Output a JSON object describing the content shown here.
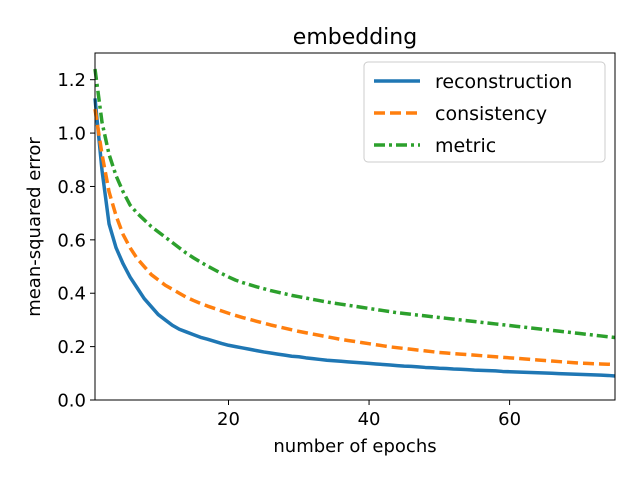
{
  "chart_data": {
    "type": "line",
    "title": "embedding",
    "xlabel": "number of epochs",
    "ylabel": "mean-squared error",
    "xlim": [
      1,
      75
    ],
    "ylim": [
      0.0,
      1.3
    ],
    "xticks": [
      20,
      40,
      60
    ],
    "xtick_labels": [
      "20",
      "40",
      "60"
    ],
    "yticks": [
      0.0,
      0.2,
      0.4,
      0.6,
      0.8,
      1.0,
      1.2
    ],
    "ytick_labels": [
      "0.0",
      "0.2",
      "0.4",
      "0.6",
      "0.8",
      "1.0",
      "1.2"
    ],
    "legend_position": "upper-right",
    "x": [
      1,
      2,
      3,
      4,
      5,
      6,
      7,
      8,
      9,
      10,
      11,
      12,
      13,
      14,
      15,
      16,
      17,
      18,
      19,
      20,
      21,
      22,
      23,
      24,
      25,
      26,
      27,
      28,
      29,
      30,
      31,
      32,
      33,
      34,
      35,
      36,
      37,
      38,
      39,
      40,
      41,
      42,
      43,
      44,
      45,
      46,
      47,
      48,
      49,
      50,
      51,
      52,
      53,
      54,
      55,
      56,
      57,
      58,
      59,
      60,
      61,
      62,
      63,
      64,
      65,
      66,
      67,
      68,
      69,
      70,
      71,
      72,
      73,
      74,
      75
    ],
    "series": [
      {
        "name": "reconstruction",
        "color": "#1f77b4",
        "style": "solid",
        "values": [
          1.13,
          0.86,
          0.66,
          0.57,
          0.51,
          0.46,
          0.42,
          0.38,
          0.35,
          0.32,
          0.3,
          0.28,
          0.265,
          0.255,
          0.245,
          0.235,
          0.228,
          0.22,
          0.212,
          0.205,
          0.2,
          0.195,
          0.19,
          0.185,
          0.18,
          0.176,
          0.172,
          0.168,
          0.164,
          0.162,
          0.158,
          0.155,
          0.152,
          0.149,
          0.147,
          0.145,
          0.143,
          0.141,
          0.139,
          0.137,
          0.135,
          0.133,
          0.131,
          0.129,
          0.127,
          0.126,
          0.124,
          0.122,
          0.121,
          0.119,
          0.118,
          0.116,
          0.115,
          0.114,
          0.112,
          0.111,
          0.11,
          0.109,
          0.107,
          0.106,
          0.105,
          0.104,
          0.103,
          0.102,
          0.101,
          0.1,
          0.099,
          0.098,
          0.097,
          0.096,
          0.095,
          0.094,
          0.093,
          0.092,
          0.09
        ]
      },
      {
        "name": "consistency",
        "color": "#ff7f0e",
        "style": "dashed",
        "values": [
          1.09,
          0.92,
          0.78,
          0.69,
          0.62,
          0.57,
          0.53,
          0.5,
          0.47,
          0.45,
          0.43,
          0.415,
          0.4,
          0.385,
          0.373,
          0.362,
          0.352,
          0.343,
          0.334,
          0.325,
          0.317,
          0.309,
          0.302,
          0.295,
          0.288,
          0.281,
          0.275,
          0.269,
          0.263,
          0.257,
          0.252,
          0.247,
          0.242,
          0.237,
          0.232,
          0.227,
          0.223,
          0.219,
          0.215,
          0.211,
          0.207,
          0.203,
          0.199,
          0.196,
          0.193,
          0.19,
          0.187,
          0.184,
          0.181,
          0.178,
          0.176,
          0.174,
          0.172,
          0.17,
          0.168,
          0.166,
          0.164,
          0.162,
          0.16,
          0.158,
          0.156,
          0.154,
          0.152,
          0.15,
          0.148,
          0.146,
          0.144,
          0.142,
          0.14,
          0.138,
          0.137,
          0.136,
          0.135,
          0.134,
          0.133
        ]
      },
      {
        "name": "metric",
        "color": "#2ca02c",
        "style": "dashdot",
        "values": [
          1.24,
          1.04,
          0.92,
          0.84,
          0.78,
          0.73,
          0.7,
          0.675,
          0.65,
          0.63,
          0.61,
          0.59,
          0.57,
          0.55,
          0.533,
          0.517,
          0.502,
          0.488,
          0.474,
          0.461,
          0.449,
          0.44,
          0.432,
          0.424,
          0.417,
          0.41,
          0.404,
          0.398,
          0.392,
          0.387,
          0.382,
          0.377,
          0.372,
          0.367,
          0.363,
          0.359,
          0.355,
          0.351,
          0.347,
          0.343,
          0.339,
          0.335,
          0.331,
          0.327,
          0.324,
          0.321,
          0.318,
          0.315,
          0.312,
          0.309,
          0.306,
          0.303,
          0.3,
          0.297,
          0.294,
          0.291,
          0.288,
          0.285,
          0.282,
          0.279,
          0.276,
          0.273,
          0.27,
          0.267,
          0.264,
          0.261,
          0.258,
          0.255,
          0.252,
          0.249,
          0.246,
          0.243,
          0.24,
          0.237,
          0.234
        ]
      }
    ]
  }
}
